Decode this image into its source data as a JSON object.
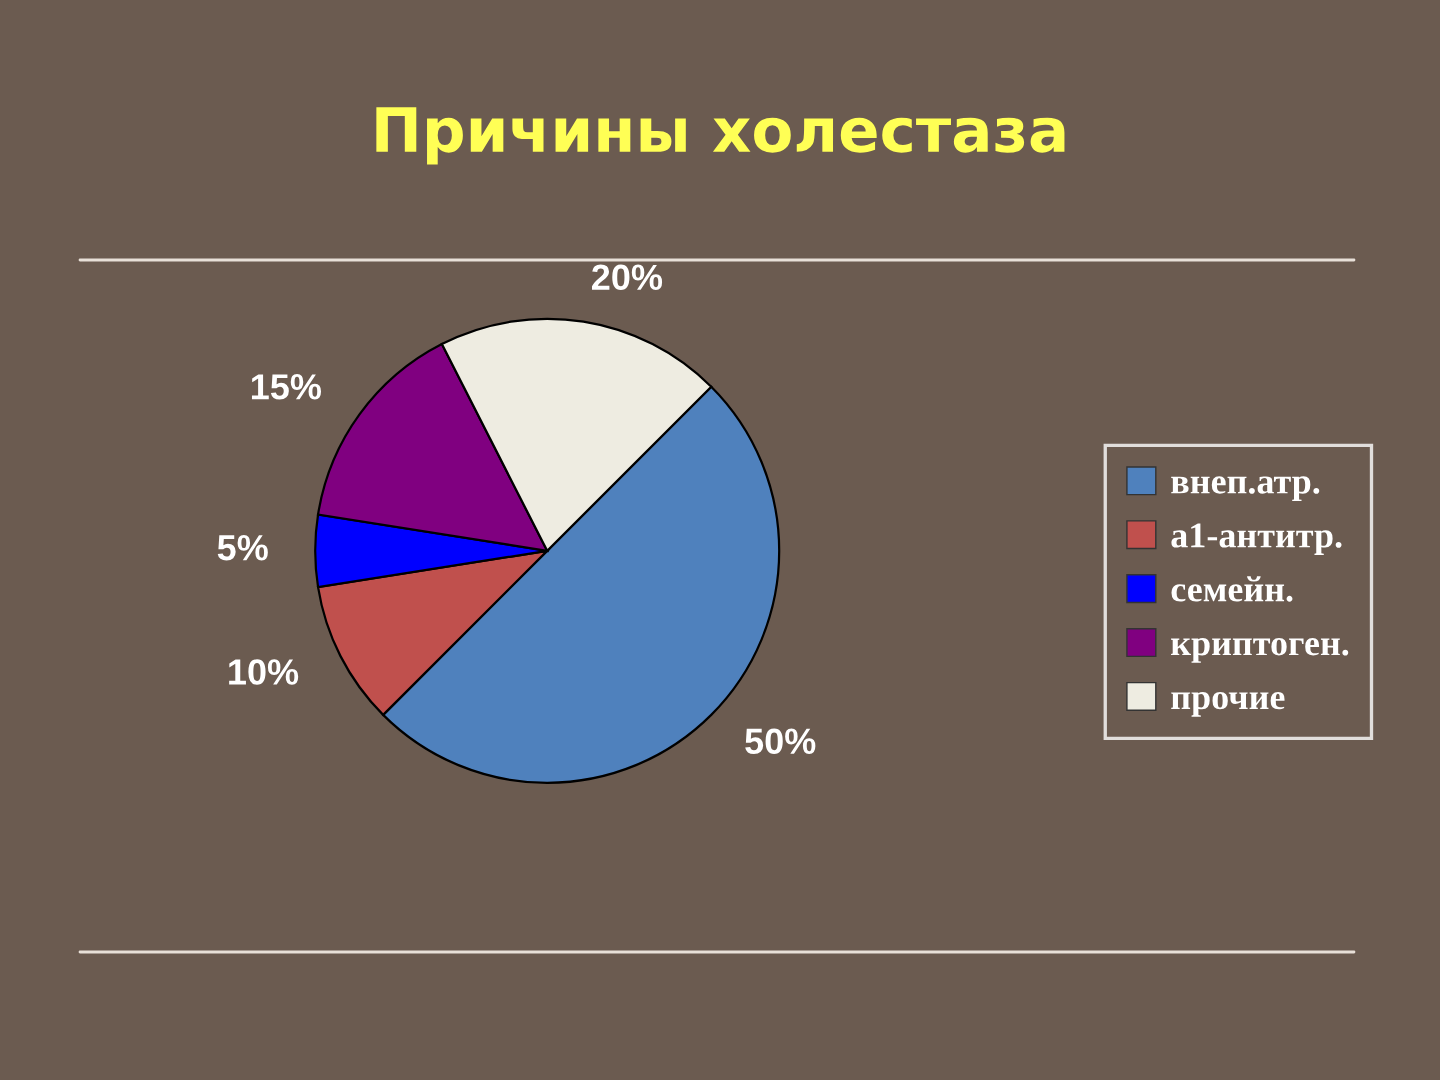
{
  "chart_data": {
    "type": "pie",
    "title": "Причины холестаза",
    "categories": [
      "внеп.атр.",
      "а1-антитр.",
      "семейн.",
      "криптоген.",
      "прочие"
    ],
    "values": [
      50,
      10,
      5,
      15,
      20
    ],
    "colors": [
      "#4f81bd",
      "#c0504d",
      "#0000ff",
      "#800080",
      "#eeece1"
    ],
    "value_labels": [
      "50%",
      "10%",
      "5%",
      "15%",
      "20%"
    ],
    "legend": "right"
  }
}
